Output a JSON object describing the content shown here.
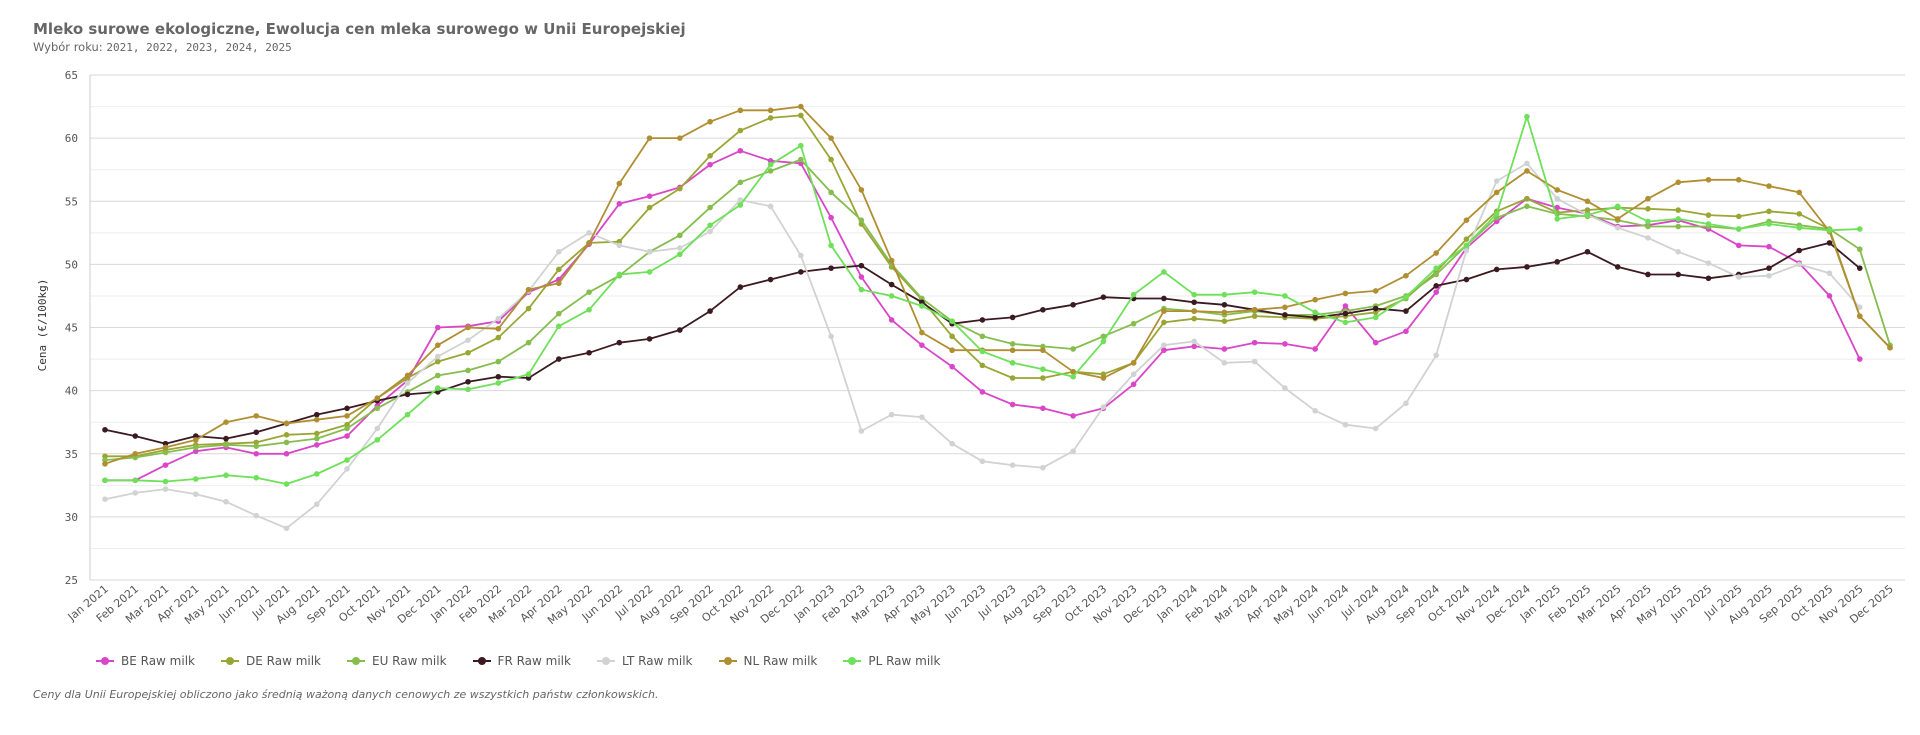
{
  "header": {
    "title": "Mleko surowe ekologiczne, Ewolucja cen mleka surowego w Unii Europejskiej",
    "subtitle_prefix": "Wybór roku:",
    "subtitle_years": "2021, 2022, 2023, 2024, 2025"
  },
  "footnote": "Ceny dla Unii Europejskiej obliczono jako średnią ważoną danych cenowych ze wszystkich państw członkowskich.",
  "chart_data": {
    "type": "line",
    "title": "Mleko surowe ekologiczne, Ewolucja cen mleka surowego w Unii Europejskiej",
    "xlabel": "",
    "ylabel": "Cena (€/100kg)",
    "ylim": [
      25,
      65
    ],
    "yticks": [
      25,
      30,
      35,
      40,
      45,
      50,
      55,
      60,
      65
    ],
    "grid": true,
    "legend_position": "bottom",
    "categories": [
      "Jan 2021",
      "Feb 2021",
      "Mar 2021",
      "Apr 2021",
      "May 2021",
      "Jun 2021",
      "Jul 2021",
      "Aug 2021",
      "Sep 2021",
      "Oct 2021",
      "Nov 2021",
      "Dec 2021",
      "Jan 2022",
      "Feb 2022",
      "Mar 2022",
      "Apr 2022",
      "May 2022",
      "Jun 2022",
      "Jul 2022",
      "Aug 2022",
      "Sep 2022",
      "Oct 2022",
      "Nov 2022",
      "Dec 2022",
      "Jan 2023",
      "Feb 2023",
      "Mar 2023",
      "Apr 2023",
      "May 2023",
      "Jun 2023",
      "Jul 2023",
      "Aug 2023",
      "Sep 2023",
      "Oct 2023",
      "Nov 2023",
      "Dec 2023",
      "Jan 2024",
      "Feb 2024",
      "Mar 2024",
      "Apr 2024",
      "May 2024",
      "Jun 2024",
      "Jul 2024",
      "Aug 2024",
      "Sep 2024",
      "Oct 2024",
      "Nov 2024",
      "Dec 2024",
      "Jan 2025",
      "Feb 2025",
      "Mar 2025",
      "Apr 2025",
      "May 2025",
      "Jun 2025",
      "Jul 2025",
      "Aug 2025",
      "Sep 2025",
      "Oct 2025",
      "Nov 2025",
      "Dec 2025"
    ],
    "series": [
      {
        "name": "BE Raw milk",
        "color": "#d946c8",
        "values": [
          32.9,
          32.9,
          34.1,
          35.2,
          35.5,
          35.0,
          35.0,
          35.7,
          36.4,
          38.8,
          40.8,
          45.0,
          45.1,
          45.5,
          47.8,
          48.8,
          51.6,
          54.8,
          55.4,
          56.1,
          57.9,
          59.0,
          58.2,
          58.0,
          53.7,
          49.0,
          45.6,
          43.6,
          41.9,
          39.9,
          38.9,
          38.6,
          38.0,
          38.6,
          40.5,
          43.2,
          43.5,
          43.3,
          43.8,
          43.7,
          43.3,
          46.7,
          43.8,
          44.7,
          47.8,
          51.3,
          53.4,
          55.2,
          54.5,
          54.0,
          53.0,
          53.1,
          53.5,
          52.8,
          51.5,
          51.4,
          50.1,
          47.5,
          42.5,
          null
        ]
      },
      {
        "name": "DE Raw milk",
        "color": "#9aa634",
        "values": [
          34.8,
          34.8,
          35.3,
          35.7,
          35.8,
          35.9,
          36.5,
          36.6,
          37.3,
          39.4,
          41.0,
          42.3,
          43.0,
          44.2,
          46.5,
          49.6,
          51.7,
          51.8,
          54.5,
          56.0,
          58.6,
          60.6,
          61.6,
          61.8,
          58.3,
          53.2,
          49.8,
          47.2,
          44.3,
          42.0,
          41.0,
          41.0,
          41.5,
          41.3,
          42.2,
          45.4,
          45.7,
          45.5,
          45.9,
          45.8,
          45.7,
          45.9,
          46.2,
          47.3,
          49.4,
          52.0,
          54.2,
          55.2,
          54.1,
          54.3,
          54.5,
          54.4,
          54.3,
          53.9,
          53.8,
          54.2,
          54.0,
          52.8,
          45.9,
          43.4
        ]
      },
      {
        "name": "EU Raw milk",
        "color": "#86bd4e",
        "values": [
          34.5,
          34.7,
          35.1,
          35.5,
          35.7,
          35.6,
          35.9,
          36.2,
          37.0,
          38.6,
          39.9,
          41.2,
          41.6,
          42.3,
          43.8,
          46.1,
          47.8,
          49.1,
          51.0,
          52.3,
          54.5,
          56.5,
          57.4,
          58.3,
          55.7,
          53.5,
          50.0,
          47.3,
          45.5,
          44.3,
          43.7,
          43.5,
          43.3,
          44.3,
          45.3,
          46.5,
          46.3,
          46.0,
          46.3,
          46.0,
          46.0,
          46.3,
          46.7,
          47.5,
          49.2,
          51.5,
          53.7,
          54.6,
          54.0,
          53.8,
          53.5,
          53.0,
          53.0,
          53.0,
          52.8,
          53.4,
          53.1,
          52.8,
          51.2,
          43.6
        ]
      },
      {
        "name": "FR Raw milk",
        "color": "#3b1a22",
        "values": [
          36.9,
          36.4,
          35.8,
          36.4,
          36.2,
          36.7,
          37.4,
          38.1,
          38.6,
          39.2,
          39.7,
          39.9,
          40.7,
          41.1,
          41.0,
          42.5,
          43.0,
          43.8,
          44.1,
          44.8,
          46.3,
          48.2,
          48.8,
          49.4,
          49.7,
          49.9,
          48.4,
          47.0,
          45.3,
          45.6,
          45.8,
          46.4,
          46.8,
          47.4,
          47.3,
          47.3,
          47.0,
          46.8,
          46.4,
          46.0,
          45.8,
          46.1,
          46.5,
          46.3,
          48.3,
          48.8,
          49.6,
          49.8,
          50.2,
          51.0,
          49.8,
          49.2,
          49.2,
          48.9,
          49.2,
          49.7,
          51.1,
          51.7,
          49.7,
          null
        ]
      },
      {
        "name": "LT Raw milk",
        "color": "#d0d3d1",
        "values": [
          31.4,
          31.9,
          32.2,
          31.8,
          31.2,
          30.1,
          29.1,
          31.0,
          33.8,
          37.0,
          40.6,
          42.7,
          44.0,
          45.7,
          47.9,
          51.0,
          52.5,
          51.5,
          51.0,
          51.3,
          52.6,
          55.1,
          54.6,
          50.7,
          44.3,
          36.8,
          38.1,
          37.9,
          35.8,
          34.4,
          34.1,
          33.9,
          35.2,
          38.7,
          41.3,
          43.6,
          43.9,
          42.2,
          42.3,
          40.2,
          38.4,
          37.3,
          37.0,
          39.0,
          42.8,
          51.1,
          56.6,
          58.0,
          55.2,
          53.9,
          52.9,
          52.1,
          51.0,
          50.1,
          49.0,
          49.1,
          50.0,
          49.3,
          46.6,
          null
        ]
      },
      {
        "name": "NL Raw milk",
        "color": "#b08e32",
        "values": [
          34.2,
          35.0,
          35.5,
          36.1,
          37.5,
          38.0,
          37.4,
          37.7,
          38.0,
          39.4,
          41.2,
          43.6,
          45.0,
          44.9,
          48.0,
          48.5,
          51.7,
          56.4,
          60.0,
          60.0,
          61.3,
          62.2,
          62.2,
          62.5,
          60.0,
          55.9,
          50.3,
          44.6,
          43.2,
          43.2,
          43.2,
          43.2,
          41.5,
          41.0,
          42.2,
          46.3,
          46.3,
          46.2,
          46.4,
          46.6,
          47.2,
          47.7,
          47.9,
          49.1,
          50.9,
          53.5,
          55.7,
          57.4,
          55.9,
          55.0,
          53.6,
          55.2,
          56.5,
          56.7,
          56.7,
          56.2,
          55.7,
          52.6,
          45.9,
          43.4
        ]
      },
      {
        "name": "PL Raw milk",
        "color": "#6ee05a",
        "values": [
          32.9,
          32.9,
          32.8,
          33.0,
          33.3,
          33.1,
          32.6,
          33.4,
          34.5,
          36.1,
          38.1,
          40.2,
          40.1,
          40.6,
          41.3,
          45.1,
          46.4,
          49.2,
          49.4,
          50.8,
          53.1,
          54.7,
          57.9,
          59.4,
          51.5,
          48.0,
          47.5,
          46.7,
          45.5,
          43.1,
          42.2,
          41.7,
          41.1,
          43.9,
          47.6,
          49.4,
          47.6,
          47.6,
          47.8,
          47.5,
          46.2,
          45.4,
          45.8,
          47.4,
          49.7,
          51.5,
          54.0,
          61.7,
          53.6,
          53.9,
          54.6,
          53.4,
          53.6,
          53.2,
          52.8,
          53.2,
          52.9,
          52.7,
          52.8,
          null
        ]
      }
    ]
  }
}
